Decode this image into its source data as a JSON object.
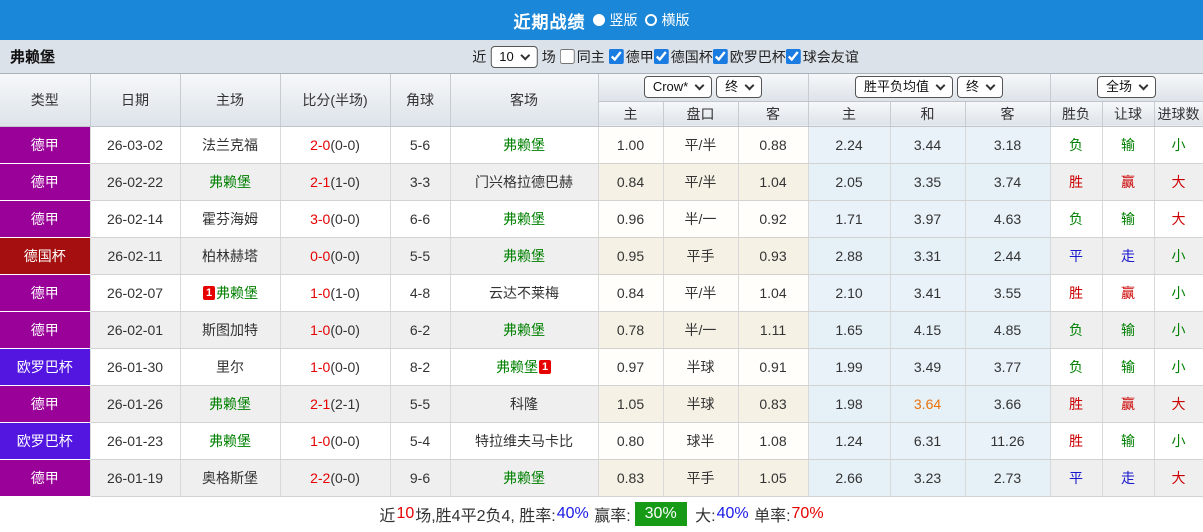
{
  "colors": {
    "topbar_bg": "#1a87d8",
    "filterbar_bg": "#dce2e9",
    "checkbox_accent": "#1a7ce0",
    "league_map": {
      "德甲": "#990199",
      "德国杯": "#a50f0f",
      "欧罗巴杯": "#5216e0"
    },
    "score_red": "#e60000",
    "focus_team_green": "#008000",
    "normal_team": "#333333",
    "result_map": {
      "胜": "#cc0000",
      "赢": "#cc0000",
      "大": "#cc0000",
      "负": "#008000",
      "输": "#008000",
      "小": "#008000",
      "平": "#1a1acd",
      "走": "#1a1acd"
    },
    "avg_section_bg": "#e9f2f9",
    "avg_highlight": "#e8730e",
    "winrate_badge_bg": "#179b17"
  },
  "titlebar": {
    "title": "近期战绩",
    "options": [
      {
        "label": "竖版",
        "selected": true
      },
      {
        "label": "横版",
        "selected": false
      }
    ]
  },
  "filterbar": {
    "team": "弗赖堡",
    "near_label": "近",
    "count_value": "10",
    "games_label": "场",
    "same_home": {
      "label": "同主",
      "checked": false
    },
    "leagues": [
      {
        "label": "德甲",
        "checked": true
      },
      {
        "label": "德国杯",
        "checked": true
      },
      {
        "label": "欧罗巴杯",
        "checked": true
      },
      {
        "label": "球会友谊",
        "checked": true
      }
    ]
  },
  "controls": {
    "bookmaker_select": "Crow*",
    "bookmaker_stage_select": "终",
    "avg_select": "胜平负均值",
    "avg_stage_select": "终",
    "scope_select": "全场"
  },
  "headers": {
    "type": "类型",
    "date": "日期",
    "home": "主场",
    "score": "比分(半场)",
    "corners": "角球",
    "away": "客场",
    "odds_home": "主",
    "handicap": "盘口",
    "odds_away": "客",
    "avg_home": "主",
    "avg_draw": "和",
    "avg_away": "客",
    "result": "胜负",
    "handicap_result": "让球",
    "goals": "进球数"
  },
  "rows": [
    {
      "type": "德甲",
      "date": "26-03-02",
      "home": "法兰克福",
      "home_focus": false,
      "score": "2-0",
      "half": "(0-0)",
      "corners": "5-6",
      "away": "弗赖堡",
      "away_focus": true,
      "odds": [
        "1.00",
        "平/半",
        "0.88"
      ],
      "avg": [
        "2.24",
        "3.44",
        "3.18"
      ],
      "results": [
        "负",
        "输",
        "小"
      ]
    },
    {
      "type": "德甲",
      "date": "26-02-22",
      "home": "弗赖堡",
      "home_focus": true,
      "score": "2-1",
      "half": "(1-0)",
      "corners": "3-3",
      "away": "门兴格拉德巴赫",
      "away_focus": false,
      "odds": [
        "0.84",
        "平/半",
        "1.04"
      ],
      "avg": [
        "2.05",
        "3.35",
        "3.74"
      ],
      "results": [
        "胜",
        "赢",
        "大"
      ]
    },
    {
      "type": "德甲",
      "date": "26-02-14",
      "home": "霍芬海姆",
      "home_focus": false,
      "score": "3-0",
      "half": "(0-0)",
      "corners": "6-6",
      "away": "弗赖堡",
      "away_focus": true,
      "odds": [
        "0.96",
        "半/一",
        "0.92"
      ],
      "avg": [
        "1.71",
        "3.97",
        "4.63"
      ],
      "results": [
        "负",
        "输",
        "大"
      ]
    },
    {
      "type": "德国杯",
      "date": "26-02-11",
      "home": "柏林赫塔",
      "home_focus": false,
      "score": "0-0",
      "half": "(0-0)",
      "corners": "5-5",
      "away": "弗赖堡",
      "away_focus": true,
      "odds": [
        "0.95",
        "平手",
        "0.93"
      ],
      "avg": [
        "2.88",
        "3.31",
        "2.44"
      ],
      "results": [
        "平",
        "走",
        "小"
      ]
    },
    {
      "type": "德甲",
      "date": "26-02-07",
      "home": "弗赖堡",
      "home_focus": true,
      "home_badge": "1",
      "score": "1-0",
      "half": "(1-0)",
      "corners": "4-8",
      "away": "云达不莱梅",
      "away_focus": false,
      "odds": [
        "0.84",
        "平/半",
        "1.04"
      ],
      "avg": [
        "2.10",
        "3.41",
        "3.55"
      ],
      "results": [
        "胜",
        "赢",
        "小"
      ]
    },
    {
      "type": "德甲",
      "date": "26-02-01",
      "home": "斯图加特",
      "home_focus": false,
      "score": "1-0",
      "half": "(0-0)",
      "corners": "6-2",
      "away": "弗赖堡",
      "away_focus": true,
      "odds": [
        "0.78",
        "半/一",
        "1.11"
      ],
      "avg": [
        "1.65",
        "4.15",
        "4.85"
      ],
      "results": [
        "负",
        "输",
        "小"
      ]
    },
    {
      "type": "欧罗巴杯",
      "date": "26-01-30",
      "home": "里尔",
      "home_focus": false,
      "score": "1-0",
      "half": "(0-0)",
      "corners": "8-2",
      "away": "弗赖堡",
      "away_focus": true,
      "away_badge": "1",
      "odds": [
        "0.97",
        "半球",
        "0.91"
      ],
      "avg": [
        "1.99",
        "3.49",
        "3.77"
      ],
      "results": [
        "负",
        "输",
        "小"
      ]
    },
    {
      "type": "德甲",
      "date": "26-01-26",
      "home": "弗赖堡",
      "home_focus": true,
      "score": "2-1",
      "half": "(2-1)",
      "corners": "5-5",
      "away": "科隆",
      "away_focus": false,
      "odds": [
        "1.05",
        "半球",
        "0.83"
      ],
      "avg": [
        "1.98",
        "3.64",
        "3.66"
      ],
      "avg_highlight_index": 1,
      "results": [
        "胜",
        "赢",
        "大"
      ]
    },
    {
      "type": "欧罗巴杯",
      "date": "26-01-23",
      "home": "弗赖堡",
      "home_focus": true,
      "score": "1-0",
      "half": "(0-0)",
      "corners": "5-4",
      "away": "特拉维夫马卡比",
      "away_focus": false,
      "odds": [
        "0.80",
        "球半",
        "1.08"
      ],
      "avg": [
        "1.24",
        "6.31",
        "11.26"
      ],
      "results": [
        "胜",
        "输",
        "小"
      ]
    },
    {
      "type": "德甲",
      "date": "26-01-19",
      "home": "奥格斯堡",
      "home_focus": false,
      "score": "2-2",
      "half": "(0-0)",
      "corners": "9-6",
      "away": "弗赖堡",
      "away_focus": true,
      "odds": [
        "0.83",
        "平手",
        "1.05"
      ],
      "avg": [
        "2.66",
        "3.23",
        "2.73"
      ],
      "results": [
        "平",
        "走",
        "大"
      ]
    }
  ],
  "footer": {
    "segments": [
      {
        "text": "近",
        "color": "#333333"
      },
      {
        "text": "10",
        "color": "#e60000"
      },
      {
        "text": "场,胜4平2负4, 胜率:",
        "color": "#333333"
      },
      {
        "text": "40%",
        "color": "#1a1ae6"
      },
      {
        "text": " 赢率:",
        "color": "#333333"
      },
      {
        "text": "30%",
        "color": "#ffffff",
        "bg": "#179b17"
      },
      {
        "text": " 大:",
        "color": "#1a1ae6",
        "label_color": "#333333"
      },
      {
        "text": "40%",
        "color": "#1a1ae6"
      },
      {
        "text": " 单率:",
        "color": "#333333"
      },
      {
        "text": "70%",
        "color": "#e60000"
      }
    ]
  }
}
